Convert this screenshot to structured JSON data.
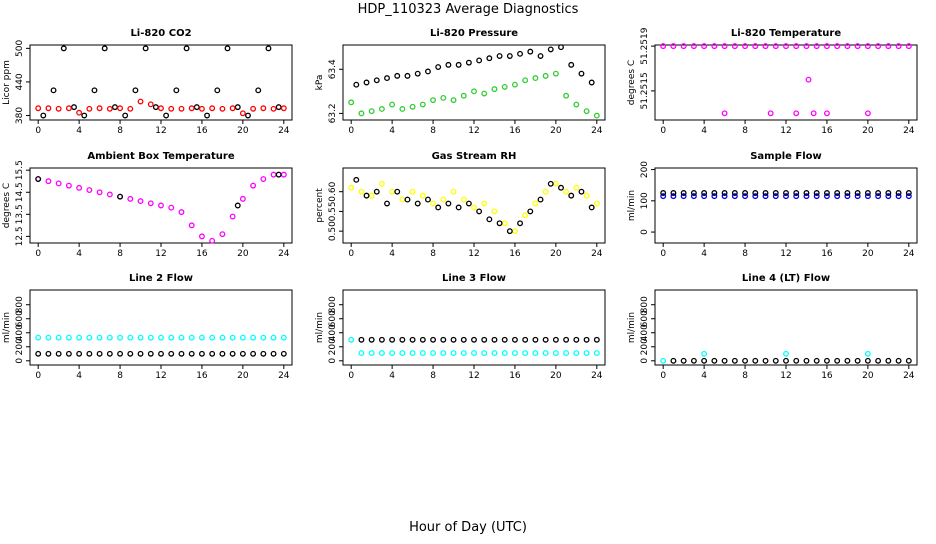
{
  "title": "HDP_110323  Average Diagnostics",
  "xlabel": "Hour of Day (UTC)",
  "chart_data": [
    {
      "type": "scatter",
      "title": "Li-820 CO2",
      "ylabel": "Licor ppm",
      "xlim": [
        -0.8,
        24.8
      ],
      "xticks": [
        0,
        4,
        8,
        12,
        16,
        20,
        24
      ],
      "ylim": [
        372,
        506
      ],
      "yticks": [
        380,
        440,
        500
      ],
      "series": [
        {
          "color": "#000000",
          "x": [
            0.5,
            1.5,
            2.5,
            3.5,
            4.5,
            5.5,
            6.5,
            7.5,
            8.5,
            9.5,
            10.5,
            11.5,
            12.5,
            13.5,
            14.5,
            15.5,
            16.5,
            17.5,
            18.5,
            19.5,
            20.5,
            21.5,
            22.5,
            23.5
          ],
          "values": [
            380,
            425,
            500,
            395,
            380,
            425,
            500,
            395,
            380,
            425,
            500,
            395,
            380,
            425,
            500,
            395,
            380,
            425,
            500,
            395,
            380,
            425,
            500,
            395
          ]
        },
        {
          "color": "#ff0000",
          "x": [
            0,
            1,
            2,
            3,
            4,
            5,
            6,
            7,
            8,
            9,
            10,
            11,
            12,
            13,
            14,
            15,
            16,
            17,
            18,
            19,
            20,
            21,
            22,
            23,
            24
          ],
          "values": [
            393,
            393,
            392,
            393,
            385,
            392,
            393,
            392,
            393,
            392,
            405,
            400,
            393,
            392,
            392,
            393,
            392,
            393,
            392,
            393,
            384,
            392,
            393,
            392,
            393
          ]
        }
      ]
    },
    {
      "type": "scatter",
      "title": "Li-820 Pressure",
      "ylabel": "kPa",
      "xlim": [
        -0.8,
        24.8
      ],
      "xticks": [
        0,
        4,
        8,
        12,
        16,
        20,
        24
      ],
      "ylim": [
        63.17,
        63.51
      ],
      "yticks": [
        63.2,
        63.4
      ],
      "series": [
        {
          "color": "#000000",
          "x": [
            0.5,
            1.5,
            2.5,
            3.5,
            4.5,
            5.5,
            6.5,
            7.5,
            8.5,
            9.5,
            10.5,
            11.5,
            12.5,
            13.5,
            14.5,
            15.5,
            16.5,
            17.5,
            18.5,
            19.5,
            20.5,
            21.5,
            22.5,
            23.5
          ],
          "values": [
            63.33,
            63.34,
            63.35,
            63.36,
            63.37,
            63.37,
            63.38,
            63.39,
            63.41,
            63.42,
            63.42,
            63.43,
            63.44,
            63.45,
            63.46,
            63.46,
            63.47,
            63.48,
            63.46,
            63.49,
            63.5,
            63.42,
            63.38,
            63.34
          ]
        },
        {
          "color": "#33cc33",
          "x": [
            0,
            1,
            2,
            3,
            4,
            5,
            6,
            7,
            8,
            9,
            10,
            11,
            12,
            13,
            14,
            15,
            16,
            17,
            18,
            19,
            20,
            21,
            22,
            23,
            24
          ],
          "values": [
            63.25,
            63.2,
            63.21,
            63.22,
            63.24,
            63.22,
            63.23,
            63.24,
            63.26,
            63.27,
            63.26,
            63.28,
            63.3,
            63.29,
            63.31,
            63.32,
            63.33,
            63.35,
            63.36,
            63.37,
            63.38,
            63.28,
            63.24,
            63.21,
            63.19
          ]
        }
      ]
    },
    {
      "type": "scatter",
      "title": "Li-820 Temperature",
      "ylabel": "degrees C",
      "xlim": [
        -0.8,
        24.8
      ],
      "xticks": [
        0,
        4,
        8,
        12,
        16,
        20,
        24
      ],
      "ylim": [
        51.25124,
        51.25191
      ],
      "yticks": [
        51.2515,
        51.2519
      ],
      "series": [
        {
          "color": "#ff00ff",
          "x": [
            0,
            1,
            2,
            3,
            4,
            5,
            6,
            7,
            8,
            9,
            10,
            11,
            12,
            13,
            14,
            15,
            16,
            17,
            18,
            19,
            20,
            21,
            22,
            23,
            24
          ],
          "values": [
            51.2519,
            51.2519,
            51.2519,
            51.2519,
            51.2519,
            51.2519,
            51.2519,
            51.2519,
            51.2519,
            51.2519,
            51.2519,
            51.2519,
            51.2519,
            51.2519,
            51.2519,
            51.2519,
            51.2519,
            51.2519,
            51.2519,
            51.2519,
            51.2519,
            51.2519,
            51.2519,
            51.2519,
            51.2519
          ]
        },
        {
          "color": "#ff00ff",
          "x": [
            6,
            10.5,
            13,
            14.2,
            14.7,
            16,
            20
          ],
          "values": [
            51.2513,
            51.2513,
            51.2513,
            51.2516,
            51.2513,
            51.2513,
            51.2513
          ]
        }
      ]
    },
    {
      "type": "scatter",
      "title": "Ambient Box Temperature",
      "ylabel": "degrees C",
      "xlim": [
        -0.8,
        24.8
      ],
      "xticks": [
        0,
        4,
        8,
        12,
        16,
        20,
        24
      ],
      "ylim": [
        12.2,
        15.6
      ],
      "yticks": [
        12.5,
        13.5,
        14.5,
        15.5
      ],
      "series": [
        {
          "color": "#ff00ff",
          "x": [
            0,
            1,
            2,
            3,
            4,
            5,
            6,
            7,
            8,
            9,
            10,
            11,
            12,
            13,
            14,
            15,
            16,
            17,
            18,
            19,
            20,
            21,
            22,
            23,
            24
          ],
          "values": [
            15.1,
            15.0,
            14.9,
            14.8,
            14.7,
            14.6,
            14.5,
            14.4,
            14.3,
            14.2,
            14.1,
            14.0,
            13.9,
            13.8,
            13.6,
            13.0,
            12.5,
            12.3,
            12.6,
            13.4,
            14.2,
            14.8,
            15.1,
            15.3,
            15.3
          ]
        },
        {
          "color": "#000000",
          "x": [
            0,
            8,
            19.5,
            23.5
          ],
          "values": [
            15.1,
            14.3,
            13.9,
            15.3
          ]
        }
      ]
    },
    {
      "type": "scatter",
      "title": "Gas Stream RH",
      "ylabel": "percent",
      "xlim": [
        -0.8,
        24.8
      ],
      "xticks": [
        0,
        4,
        8,
        12,
        16,
        20,
        24
      ],
      "ylim": [
        0.47,
        0.66
      ],
      "yticks": [
        {
          "value": 0.5,
          "label": "0.50"
        },
        0.55,
        {
          "value": 0.6,
          "label": "0.60"
        }
      ],
      "series": [
        {
          "color": "#ffff00",
          "x": [
            0,
            1,
            2,
            3,
            4,
            5,
            6,
            7,
            8,
            9,
            10,
            11,
            12,
            13,
            14,
            15,
            16,
            17,
            18,
            19,
            20,
            21,
            22,
            23,
            24
          ],
          "values": [
            0.61,
            0.6,
            0.59,
            0.62,
            0.6,
            0.58,
            0.6,
            0.59,
            0.57,
            0.58,
            0.6,
            0.58,
            0.56,
            0.57,
            0.55,
            0.52,
            0.5,
            0.54,
            0.57,
            0.6,
            0.62,
            0.6,
            0.61,
            0.59,
            0.57
          ]
        },
        {
          "color": "#000000",
          "x": [
            0.5,
            1.5,
            2.5,
            3.5,
            4.5,
            5.5,
            6.5,
            7.5,
            8.5,
            9.5,
            10.5,
            11.5,
            12.5,
            13.5,
            14.5,
            15.5,
            16.5,
            17.5,
            18.5,
            19.5,
            20.5,
            21.5,
            22.5,
            23.5
          ],
          "values": [
            0.63,
            0.59,
            0.6,
            0.57,
            0.6,
            0.58,
            0.57,
            0.58,
            0.56,
            0.57,
            0.56,
            0.57,
            0.55,
            0.53,
            0.52,
            0.5,
            0.52,
            0.55,
            0.58,
            0.62,
            0.61,
            0.59,
            0.6,
            0.56
          ]
        }
      ]
    },
    {
      "type": "scatter",
      "title": "Sample Flow",
      "ylabel": "ml/min",
      "xlim": [
        -0.8,
        24.8
      ],
      "xticks": [
        0,
        4,
        8,
        12,
        16,
        20,
        24
      ],
      "ylim": [
        -35,
        205
      ],
      "yticks": [
        0,
        100,
        200
      ],
      "series": [
        {
          "color": "#0000ff",
          "x": [
            0,
            1,
            2,
            3,
            4,
            5,
            6,
            7,
            8,
            9,
            10,
            11,
            12,
            13,
            14,
            15,
            16,
            17,
            18,
            19,
            20,
            21,
            22,
            23,
            24
          ],
          "values": [
            115,
            115,
            115,
            115,
            115,
            115,
            115,
            115,
            115,
            115,
            115,
            115,
            115,
            115,
            115,
            115,
            115,
            115,
            115,
            115,
            115,
            115,
            115,
            115,
            115
          ]
        },
        {
          "color": "#000000",
          "x": [
            0,
            1,
            2,
            3,
            4,
            5,
            6,
            7,
            8,
            9,
            10,
            11,
            12,
            13,
            14,
            15,
            16,
            17,
            18,
            19,
            20,
            21,
            22,
            23,
            24
          ],
          "values": [
            125,
            125,
            125,
            125,
            125,
            125,
            125,
            125,
            125,
            125,
            125,
            125,
            125,
            125,
            125,
            125,
            125,
            125,
            125,
            125,
            125,
            125,
            125,
            125,
            125
          ]
        }
      ]
    },
    {
      "type": "scatter",
      "title": "Line 2 Flow",
      "ylabel": "ml/min",
      "xlim": [
        -0.8,
        24.8
      ],
      "xticks": [
        0,
        4,
        8,
        12,
        16,
        20,
        24
      ],
      "ylim": [
        -60,
        1010
      ],
      "yticks": [
        0,
        200,
        400,
        600,
        800
      ],
      "series": [
        {
          "color": "#00ffff",
          "x": [
            0,
            1,
            2,
            3,
            4,
            5,
            6,
            7,
            8,
            9,
            10,
            11,
            12,
            13,
            14,
            15,
            16,
            17,
            18,
            19,
            20,
            21,
            22,
            23,
            24
          ],
          "values": [
            330,
            330,
            330,
            330,
            330,
            330,
            330,
            330,
            330,
            330,
            330,
            330,
            330,
            330,
            330,
            330,
            330,
            330,
            330,
            330,
            330,
            330,
            330,
            330,
            330
          ]
        },
        {
          "color": "#000000",
          "x": [
            0,
            1,
            2,
            3,
            4,
            5,
            6,
            7,
            8,
            9,
            10,
            11,
            12,
            13,
            14,
            15,
            16,
            17,
            18,
            19,
            20,
            21,
            22,
            23,
            24
          ],
          "values": [
            100,
            100,
            100,
            100,
            100,
            100,
            100,
            100,
            100,
            100,
            100,
            100,
            100,
            100,
            100,
            100,
            100,
            100,
            100,
            100,
            100,
            100,
            100,
            100,
            100
          ]
        }
      ]
    },
    {
      "type": "scatter",
      "title": "Line 3 Flow",
      "ylabel": "ml/min",
      "xlim": [
        -0.8,
        24.8
      ],
      "xticks": [
        0,
        4,
        8,
        12,
        16,
        20,
        24
      ],
      "ylim": [
        -60,
        1010
      ],
      "yticks": [
        0,
        200,
        400,
        600,
        800
      ],
      "series": [
        {
          "color": "#00ffff",
          "x": [
            0,
            1,
            2,
            3,
            4,
            5,
            6,
            7,
            8,
            9,
            10,
            11,
            12,
            13,
            14,
            15,
            16,
            17,
            18,
            19,
            20,
            21,
            22,
            23,
            24
          ],
          "values": [
            300,
            110,
            110,
            110,
            110,
            110,
            110,
            110,
            110,
            110,
            110,
            110,
            110,
            110,
            110,
            110,
            110,
            110,
            110,
            110,
            110,
            110,
            110,
            110,
            110
          ]
        },
        {
          "color": "#000000",
          "x": [
            1,
            2,
            3,
            4,
            5,
            6,
            7,
            8,
            9,
            10,
            11,
            12,
            13,
            14,
            15,
            16,
            17,
            18,
            19,
            20,
            21,
            22,
            23,
            24
          ],
          "values": [
            300,
            300,
            300,
            300,
            300,
            300,
            300,
            300,
            300,
            300,
            300,
            300,
            300,
            300,
            300,
            300,
            300,
            300,
            300,
            300,
            300,
            300,
            300,
            300
          ]
        }
      ]
    },
    {
      "type": "scatter",
      "title": "Line 4 (LT) Flow",
      "ylabel": "ml/min",
      "xlim": [
        -0.8,
        24.8
      ],
      "xticks": [
        0,
        4,
        8,
        12,
        16,
        20,
        24
      ],
      "ylim": [
        -60,
        1010
      ],
      "yticks": [
        0,
        200,
        400,
        600,
        800
      ],
      "series": [
        {
          "color": "#000000",
          "x": [
            1,
            2,
            3,
            4,
            5,
            6,
            7,
            8,
            9,
            10,
            11,
            12,
            13,
            14,
            15,
            16,
            17,
            18,
            19,
            20,
            21,
            22,
            23,
            24
          ],
          "values": [
            0,
            0,
            0,
            0,
            0,
            0,
            0,
            0,
            0,
            0,
            0,
            0,
            0,
            0,
            0,
            0,
            0,
            0,
            0,
            0,
            0,
            0,
            0,
            0
          ]
        },
        {
          "color": "#00ffff",
          "x": [
            0,
            4,
            12,
            20
          ],
          "values": [
            0,
            100,
            100,
            100
          ]
        }
      ]
    }
  ]
}
